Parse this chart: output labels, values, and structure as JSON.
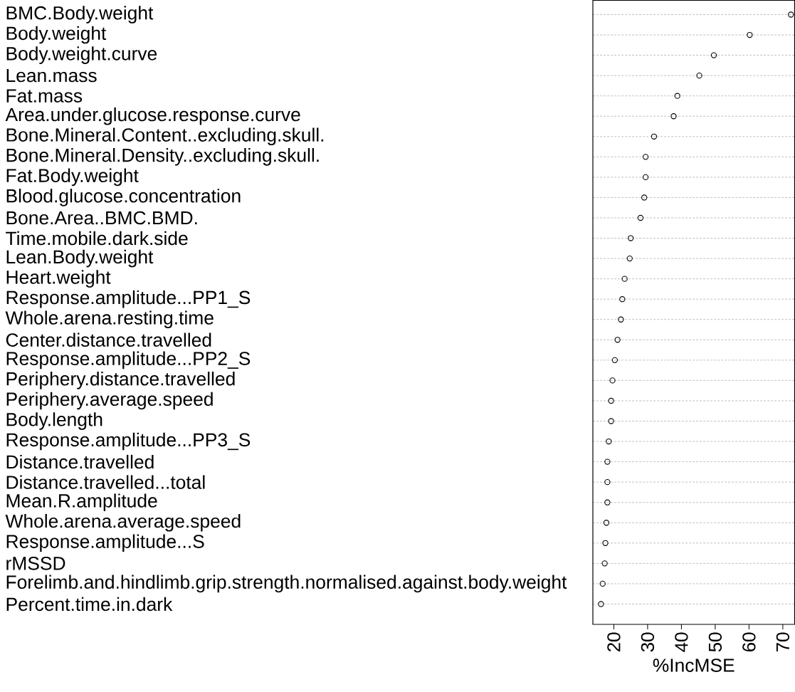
{
  "chart_data": {
    "type": "scatter",
    "orientation": "horizontal",
    "xlabel": "%IncMSE",
    "categories": [
      "BMC.Body.weight",
      "Body.weight",
      "Body.weight.curve",
      "Lean.mass",
      "Fat.mass",
      "Area.under.glucose.response.curve",
      "Bone.Mineral.Content..excluding.skull.",
      "Bone.Mineral.Density..excluding.skull.",
      "Fat.Body.weight",
      "Blood.glucose.concentration",
      "Bone.Area..BMC.BMD.",
      "Time.mobile.dark.side",
      "Lean.Body.weight",
      "Heart.weight",
      "Response.amplitude...PP1_S",
      "Whole.arena.resting.time",
      "Center.distance.travelled",
      "Response.amplitude...PP2_S",
      "Periphery.distance.travelled",
      "Periphery.average.speed",
      "Body.length",
      "Response.amplitude...PP3_S",
      "Distance.travelled",
      "Distance.travelled...total",
      "Mean.R.amplitude",
      "Whole.arena.average.speed",
      "Response.amplitude...S",
      "rMSSD",
      "Forelimb.and.hindlimb.grip.strength.normalised.against.body.weight",
      "Percent.time.in.dark"
    ],
    "values": [
      72.4,
      60.2,
      49.6,
      45.3,
      38.8,
      37.7,
      31.9,
      29.4,
      29.4,
      29.0,
      27.9,
      25.0,
      24.7,
      23.2,
      22.5,
      22.1,
      21.1,
      20.3,
      19.6,
      19.2,
      19.2,
      18.5,
      18.1,
      18.1,
      18.1,
      17.8,
      17.5,
      17.3,
      16.7,
      16.2
    ],
    "color": "#000000",
    "marker": "circle",
    "grid": "y",
    "xlim": [
      13.8,
      73.5
    ],
    "xticks": [
      20,
      30,
      40,
      50,
      60,
      70
    ]
  }
}
